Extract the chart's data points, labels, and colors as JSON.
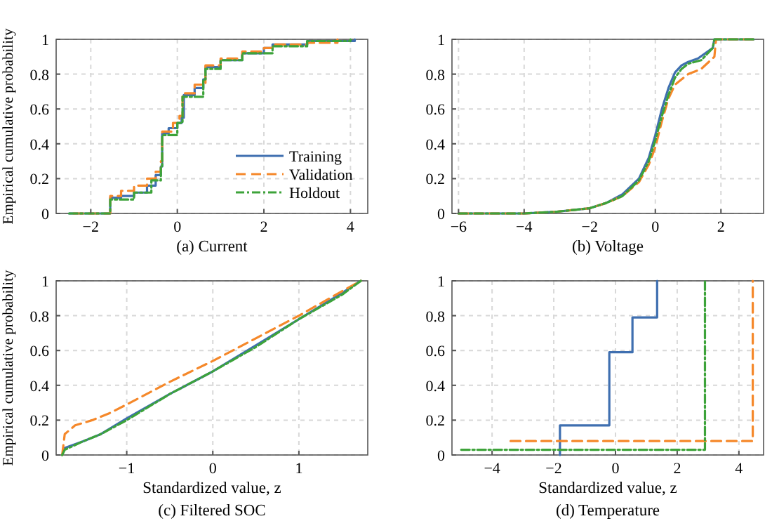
{
  "chart_data": [
    {
      "type": "step",
      "title": "(a) Current",
      "ylabel": "Empirical cumulative probability",
      "xlim": [
        -2.8,
        4.4
      ],
      "xticks": [
        -2,
        0,
        2,
        4
      ],
      "ylim": [
        0,
        1
      ],
      "yticks": [
        0,
        0.2,
        0.4,
        0.6,
        0.8,
        1
      ],
      "grid": true,
      "legend": "bottom right",
      "series": [
        {
          "name": "Training",
          "color": "#3f6fb0",
          "line_style": "solid",
          "x": [
            -2.5,
            -1.55,
            -1.3,
            -1.0,
            -0.7,
            -0.5,
            -0.38,
            -0.35,
            -0.2,
            0.0,
            0.1,
            0.15,
            0.4,
            0.6,
            0.65,
            1.0,
            1.5,
            2.0,
            2.2,
            3.0,
            4.1
          ],
          "values": [
            0,
            0.09,
            0.1,
            0.12,
            0.16,
            0.22,
            0.27,
            0.46,
            0.49,
            0.52,
            0.55,
            0.68,
            0.72,
            0.77,
            0.84,
            0.88,
            0.92,
            0.95,
            0.97,
            0.99,
            1
          ]
        },
        {
          "name": "Validation",
          "color": "#f5882a",
          "line_style": "dashed",
          "x": [
            -2.4,
            -1.55,
            -1.3,
            -1.0,
            -0.7,
            -0.5,
            -0.38,
            -0.35,
            -0.1,
            0.05,
            0.12,
            0.4,
            0.65,
            1.0,
            1.5,
            2.0,
            2.2,
            3.0,
            3.7
          ],
          "values": [
            0,
            0.1,
            0.13,
            0.16,
            0.2,
            0.24,
            0.3,
            0.47,
            0.52,
            0.56,
            0.69,
            0.74,
            0.85,
            0.89,
            0.93,
            0.95,
            0.97,
            0.98,
            1
          ]
        },
        {
          "name": "Holdout",
          "color": "#3da33a",
          "line_style": "dotted",
          "x": [
            -2.5,
            -1.55,
            -1.0,
            -0.6,
            -0.38,
            -0.35,
            0.0,
            0.12,
            0.6,
            0.65,
            1.0,
            1.5,
            2.2,
            3.0,
            4.0
          ],
          "values": [
            0,
            0.08,
            0.12,
            0.19,
            0.27,
            0.45,
            0.52,
            0.67,
            0.77,
            0.83,
            0.88,
            0.92,
            0.96,
            0.99,
            1
          ]
        }
      ]
    },
    {
      "type": "line",
      "title": "(b) Voltage",
      "xlim": [
        -6.2,
        3.3
      ],
      "xticks": [
        -6,
        -4,
        -2,
        0,
        2
      ],
      "ylim": [
        0,
        1
      ],
      "yticks": [
        0,
        0.2,
        0.4,
        0.6,
        0.8,
        1
      ],
      "grid": true,
      "series": [
        {
          "color": "#3f6fb0",
          "line_style": "solid",
          "x": [
            -6,
            -4,
            -3,
            -2,
            -1.5,
            -1,
            -0.5,
            -0.2,
            0,
            0.2,
            0.4,
            0.6,
            0.8,
            1.0,
            1.3,
            1.75,
            1.8,
            3.0
          ],
          "values": [
            0,
            0,
            0.01,
            0.03,
            0.06,
            0.11,
            0.2,
            0.32,
            0.45,
            0.6,
            0.72,
            0.81,
            0.85,
            0.87,
            0.89,
            0.95,
            1,
            1
          ]
        },
        {
          "color": "#f5882a",
          "line_style": "dashed",
          "x": [
            -6,
            -4,
            -3,
            -2,
            -1.5,
            -1,
            -0.5,
            -0.2,
            0,
            0.2,
            0.4,
            0.6,
            0.8,
            1.0,
            1.4,
            1.8,
            1.85,
            3.0
          ],
          "values": [
            0,
            0,
            0.01,
            0.03,
            0.06,
            0.1,
            0.18,
            0.28,
            0.38,
            0.53,
            0.66,
            0.74,
            0.77,
            0.8,
            0.83,
            0.9,
            1,
            1
          ]
        },
        {
          "color": "#3da33a",
          "line_style": "dotted",
          "x": [
            -6,
            -4,
            -3,
            -2,
            -1.5,
            -1,
            -0.5,
            -0.2,
            0,
            0.2,
            0.4,
            0.6,
            0.8,
            1.0,
            1.4,
            1.75,
            1.8,
            3.0
          ],
          "values": [
            0,
            0,
            0.01,
            0.03,
            0.06,
            0.1,
            0.19,
            0.3,
            0.42,
            0.56,
            0.68,
            0.78,
            0.83,
            0.86,
            0.88,
            0.95,
            1,
            1
          ]
        }
      ]
    },
    {
      "type": "line",
      "title": "(c) Filtered SOC",
      "xlabel": "Standardized value, z",
      "ylabel": "Empirical cumulative probability",
      "xlim": [
        -1.82,
        1.8
      ],
      "xticks": [
        -1,
        0,
        1
      ],
      "ylim": [
        0,
        1
      ],
      "yticks": [
        0,
        0.2,
        0.4,
        0.6,
        0.8,
        1
      ],
      "grid": true,
      "series": [
        {
          "color": "#3f6fb0",
          "line_style": "solid",
          "x": [
            -1.75,
            -1.72,
            -1.5,
            -1.3,
            -1,
            -0.5,
            0,
            0.5,
            1,
            1.5,
            1.72
          ],
          "values": [
            0,
            0.04,
            0.08,
            0.12,
            0.21,
            0.35,
            0.48,
            0.63,
            0.78,
            0.93,
            1
          ]
        },
        {
          "color": "#f5882a",
          "line_style": "dashed",
          "x": [
            -1.75,
            -1.72,
            -1.6,
            -1.4,
            -1.2,
            -1,
            -0.5,
            0,
            0.5,
            1,
            1.5,
            1.72
          ],
          "values": [
            0,
            0.12,
            0.17,
            0.2,
            0.24,
            0.29,
            0.42,
            0.54,
            0.67,
            0.8,
            0.94,
            1
          ]
        },
        {
          "color": "#3da33a",
          "line_style": "dotted",
          "x": [
            -1.75,
            -1.72,
            -1.5,
            -1.3,
            -1,
            -0.5,
            0,
            0.5,
            1,
            1.5,
            1.72
          ],
          "values": [
            0,
            0.03,
            0.08,
            0.12,
            0.2,
            0.35,
            0.48,
            0.62,
            0.78,
            0.92,
            1
          ]
        }
      ]
    },
    {
      "type": "step",
      "title": "(d) Temperature",
      "xlabel": "Standardized value, z",
      "xlim": [
        -5.3,
        4.8
      ],
      "xticks": [
        -4,
        -2,
        0,
        2,
        4
      ],
      "ylim": [
        0,
        1
      ],
      "yticks": [
        0,
        0.2,
        0.4,
        0.6,
        0.8,
        1
      ],
      "grid": true,
      "series": [
        {
          "color": "#3f6fb0",
          "line_style": "solid",
          "x": [
            -1.8,
            -1.8,
            -0.2,
            0.55,
            1.35
          ],
          "values": [
            0,
            0.17,
            0.59,
            0.79,
            1
          ]
        },
        {
          "color": "#f5882a",
          "line_style": "dashed",
          "x": [
            -3.4,
            4.45
          ],
          "values": [
            0.08,
            1
          ]
        },
        {
          "color": "#3da33a",
          "line_style": "dotted",
          "x": [
            -5.0,
            2.9
          ],
          "values": [
            0.03,
            1
          ]
        }
      ]
    }
  ]
}
